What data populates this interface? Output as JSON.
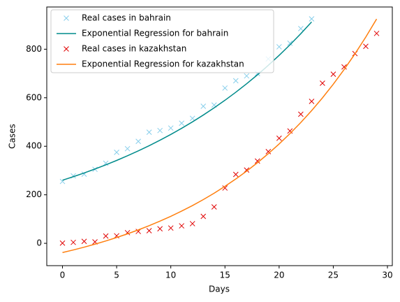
{
  "chart_data": {
    "type": "line",
    "xlabel": "Days",
    "ylabel": "Cases",
    "xlim": [
      -1.45,
      30.45
    ],
    "ylim": [
      -92,
      974
    ],
    "xticks": [
      0,
      5,
      10,
      15,
      20,
      25,
      30
    ],
    "yticks": [
      0,
      200,
      400,
      600,
      800
    ],
    "grid": false,
    "legend": "upper left",
    "series": [
      {
        "name": "Real cases in bahrain",
        "kind": "points",
        "color": "#87ceeb",
        "x": [
          0,
          1,
          2,
          3,
          4,
          5,
          6,
          7,
          8,
          9,
          10,
          11,
          12,
          13,
          14,
          15,
          16,
          17,
          18,
          19,
          20,
          21,
          22,
          23
        ],
        "values": [
          255,
          278,
          285,
          305,
          330,
          375,
          390,
          420,
          458,
          465,
          475,
          495,
          515,
          565,
          570,
          640,
          670,
          690,
          700,
          760,
          810,
          825,
          885,
          925
        ]
      },
      {
        "name": "Exponential Regression for bahrain",
        "kind": "line",
        "color": "#008b8b",
        "x": [
          0,
          1,
          2,
          3,
          4,
          5,
          6,
          7,
          8,
          9,
          10,
          11,
          12,
          13,
          14,
          15,
          16,
          17,
          18,
          19,
          20,
          21,
          22,
          23
        ],
        "values": [
          260,
          274.6,
          290,
          306.3,
          323.5,
          341.6,
          360.8,
          381,
          402.4,
          425,
          448.8,
          474,
          500.6,
          528.7,
          558.3,
          589.6,
          622.7,
          657.6,
          694.5,
          733.5,
          774.6,
          818,
          864,
          912.5
        ]
      },
      {
        "name": "Real cases in kazakhstan",
        "kind": "points",
        "color": "#e00000",
        "x": [
          0,
          1,
          2,
          3,
          4,
          5,
          6,
          7,
          8,
          9,
          10,
          11,
          12,
          13,
          14,
          15,
          16,
          17,
          18,
          19,
          20,
          21,
          22,
          23,
          24,
          25,
          26,
          27,
          28,
          29
        ],
        "values": [
          1,
          4,
          8,
          6,
          30,
          31,
          44,
          49,
          52,
          60,
          63,
          72,
          81,
          111,
          150,
          228,
          284,
          302,
          339,
          378,
          433,
          463,
          532,
          585,
          660,
          697,
          727,
          782,
          812,
          865
        ]
      },
      {
        "name": "Exponential Regression for kazakhstan",
        "kind": "line",
        "color": "#ff7f0e",
        "x": [
          0,
          1,
          2,
          3,
          4,
          5,
          6,
          7,
          8,
          9,
          10,
          11,
          12,
          13,
          14,
          15,
          16,
          17,
          18,
          19,
          20,
          21,
          22,
          23,
          24,
          25,
          26,
          27,
          28,
          29
        ],
        "values": [
          -38,
          -27.3,
          -15.8,
          -3.5,
          9.8,
          23.9,
          39.1,
          55.3,
          72.7,
          91.4,
          111.3,
          132.8,
          155.7,
          180.3,
          206.6,
          234.9,
          265.1,
          297.5,
          332.3,
          369.5,
          409.4,
          452.1,
          497.9,
          547,
          599.5,
          655.9,
          716.2,
          780.9,
          850.2,
          924.5
        ]
      }
    ]
  }
}
